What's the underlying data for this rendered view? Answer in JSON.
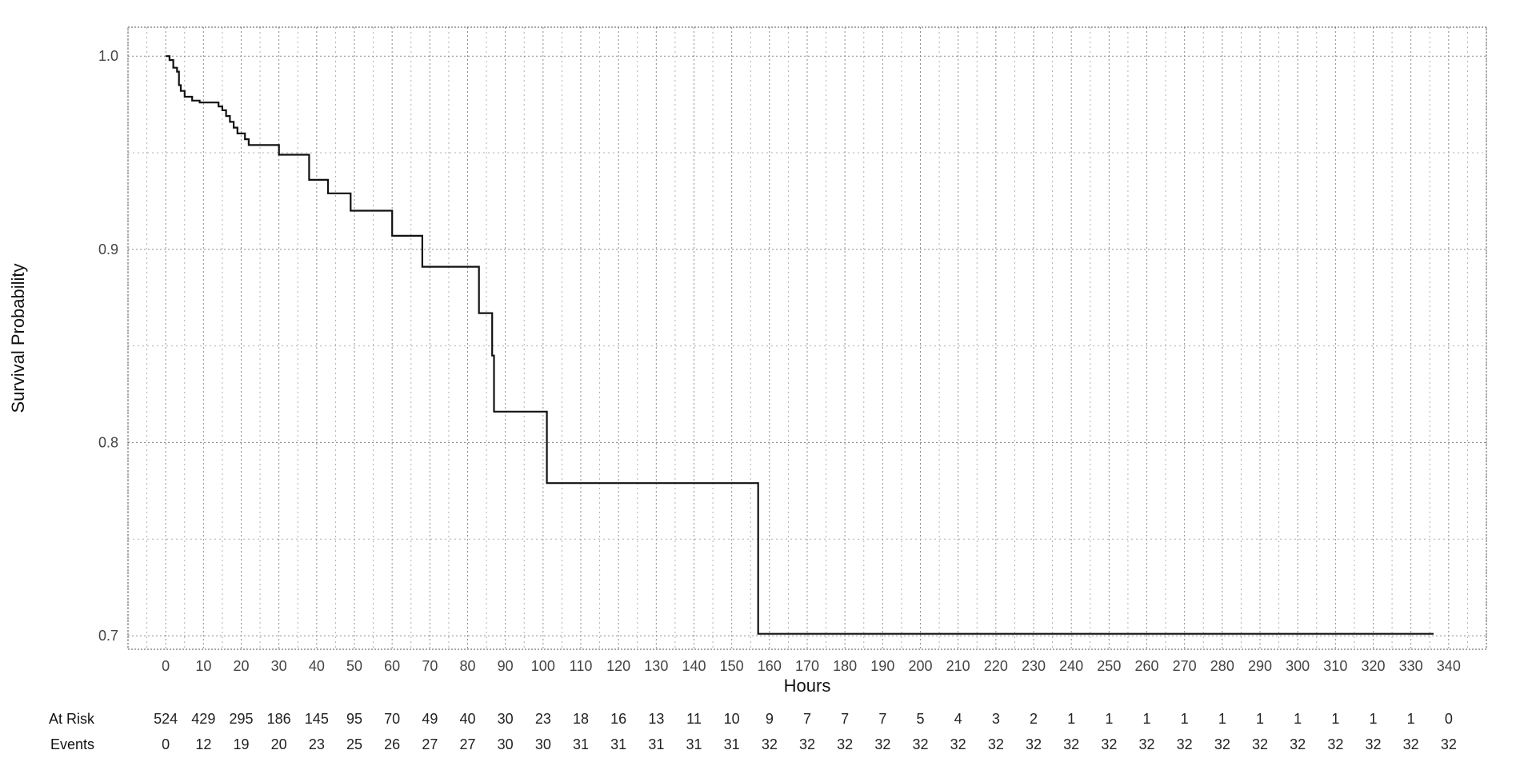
{
  "chart_data": {
    "type": "line",
    "subtype": "kaplan-meier-step",
    "title": "",
    "xlabel": "Hours",
    "ylabel": "Survival Probability",
    "xlim": [
      -10,
      350
    ],
    "ylim": [
      0.693,
      1.015
    ],
    "x_ticks": [
      0,
      10,
      20,
      30,
      40,
      50,
      60,
      70,
      80,
      90,
      100,
      110,
      120,
      130,
      140,
      150,
      160,
      170,
      180,
      190,
      200,
      210,
      220,
      230,
      240,
      250,
      260,
      270,
      280,
      290,
      300,
      310,
      320,
      330,
      340
    ],
    "y_ticks": [
      0.7,
      0.8,
      0.9,
      1.0
    ],
    "y_tick_labels": [
      "0.7",
      "0.8",
      "0.9",
      "1.0"
    ],
    "y_minor_gridlines": [
      0.75,
      0.85,
      0.95
    ],
    "grid": true,
    "series": [
      {
        "points": [
          [
            0,
            1.0
          ],
          [
            1,
            0.998
          ],
          [
            2,
            0.994
          ],
          [
            3,
            0.992
          ],
          [
            3.5,
            0.985
          ],
          [
            4,
            0.982
          ],
          [
            5,
            0.979
          ],
          [
            7,
            0.977
          ],
          [
            9,
            0.976
          ],
          [
            14,
            0.974
          ],
          [
            15,
            0.972
          ],
          [
            16,
            0.969
          ],
          [
            17,
            0.966
          ],
          [
            18,
            0.963
          ],
          [
            19,
            0.96
          ],
          [
            21,
            0.957
          ],
          [
            22,
            0.954
          ],
          [
            30,
            0.949
          ],
          [
            38,
            0.936
          ],
          [
            43,
            0.929
          ],
          [
            49,
            0.92
          ],
          [
            60,
            0.907
          ],
          [
            68,
            0.891
          ],
          [
            83,
            0.867
          ],
          [
            86.5,
            0.845
          ],
          [
            87,
            0.816
          ],
          [
            101,
            0.779
          ],
          [
            157,
            0.701
          ],
          [
            336,
            0.701
          ]
        ]
      }
    ],
    "risk_table": {
      "times": [
        0,
        10,
        20,
        30,
        40,
        50,
        60,
        70,
        80,
        90,
        100,
        110,
        120,
        130,
        140,
        150,
        160,
        170,
        180,
        190,
        200,
        210,
        220,
        230,
        240,
        250,
        260,
        270,
        280,
        290,
        300,
        310,
        320,
        330,
        340
      ],
      "rows": [
        {
          "label": "At Risk",
          "values": [
            "524",
            "429",
            "295",
            "186",
            "145",
            "95",
            "70",
            "49",
            "40",
            "30",
            "23",
            "18",
            "16",
            "13",
            "11",
            "10",
            "9",
            "7",
            "7",
            "7",
            "5",
            "4",
            "3",
            "2",
            "1",
            "1",
            "1",
            "1",
            "1",
            "1",
            "1",
            "1",
            "1",
            "1",
            "0"
          ]
        },
        {
          "label": "Events",
          "values": [
            "0",
            "12",
            "19",
            "20",
            "23",
            "25",
            "26",
            "27",
            "27",
            "30",
            "30",
            "31",
            "31",
            "31",
            "31",
            "31",
            "32",
            "32",
            "32",
            "32",
            "32",
            "32",
            "32",
            "32",
            "32",
            "32",
            "32",
            "32",
            "32",
            "32",
            "32",
            "32",
            "32",
            "32",
            "32"
          ]
        }
      ]
    }
  }
}
